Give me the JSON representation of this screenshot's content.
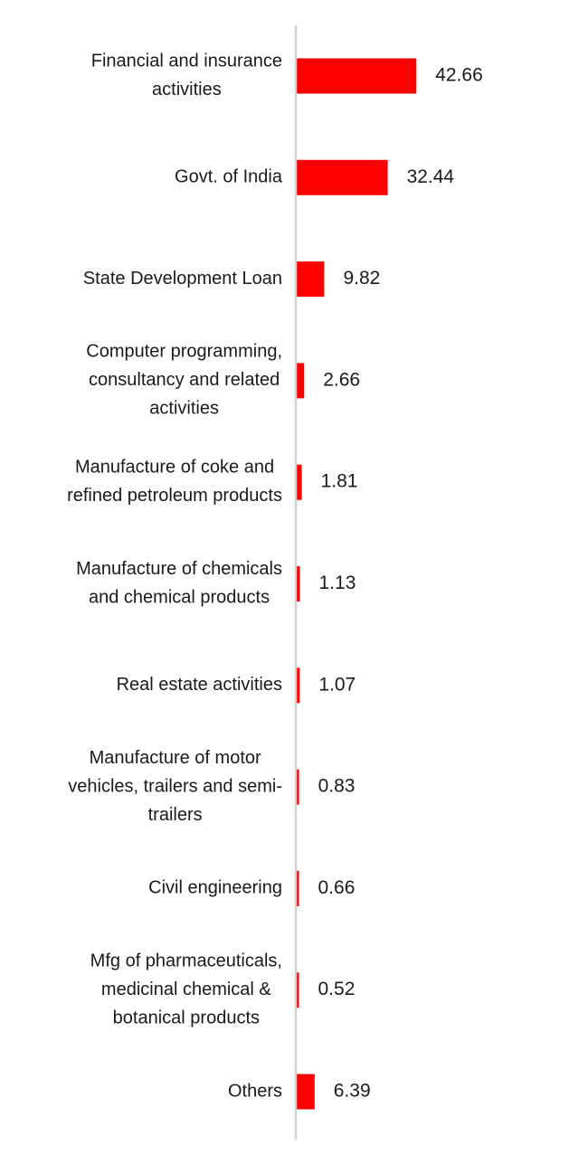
{
  "chart_data": {
    "type": "bar",
    "orientation": "horizontal",
    "categories": [
      [
        "Financial and insurance",
        "activities"
      ],
      [
        "Govt. of India"
      ],
      [
        "State Development Loan"
      ],
      [
        "Computer programming,",
        "consultancy and related",
        "activities"
      ],
      [
        "Manufacture of coke and",
        "refined petroleum products"
      ],
      [
        "Manufacture of chemicals",
        "and chemical products"
      ],
      [
        "Real estate activities"
      ],
      [
        "Manufacture of motor",
        "vehicles, trailers and semi-",
        "trailers"
      ],
      [
        "Civil engineering"
      ],
      [
        "Mfg of pharmaceuticals,",
        "medicinal chemical &",
        "botanical products"
      ],
      [
        "Others"
      ]
    ],
    "values": [
      42.66,
      32.44,
      9.82,
      2.66,
      1.81,
      1.13,
      1.07,
      0.83,
      0.66,
      0.52,
      6.39
    ],
    "value_labels": [
      "42.66",
      "32.44",
      "9.82",
      "2.66",
      "1.81",
      "1.13",
      "1.07",
      "0.83",
      "0.66",
      "0.52",
      "6.39"
    ],
    "bar_color": "#ff0000",
    "axis_color": "#d0d0d0",
    "grid": false,
    "legend": "none",
    "title": "",
    "xlabel": "",
    "ylabel": ""
  }
}
